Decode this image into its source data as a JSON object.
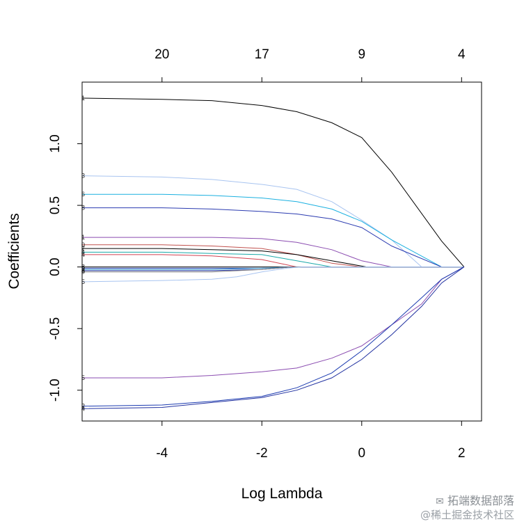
{
  "chart_data": {
    "type": "line",
    "xlabel": "Log Lambda",
    "ylabel": "Coefficients",
    "xlim": [
      -5.6,
      2.4
    ],
    "ylim": [
      -1.25,
      1.5
    ],
    "x_ticks": [
      -4,
      -2,
      0,
      2
    ],
    "x_tick_labels": [
      "-4",
      "-2",
      "0",
      "2"
    ],
    "y_ticks": [
      -1.0,
      -0.5,
      0.0,
      0.5,
      1.0
    ],
    "y_tick_labels": [
      "-1.0",
      "-0.5",
      "0.0",
      "0.5",
      "1.0"
    ],
    "top_axis": {
      "positions": [
        -4,
        -2,
        0,
        2
      ],
      "labels": [
        "20",
        "17",
        "9",
        "4"
      ]
    },
    "grid": false,
    "series": [
      {
        "label": "1",
        "color": "#000000",
        "x": [
          -5.6,
          -4,
          -3,
          -2,
          -1.3,
          -0.6,
          0,
          0.6,
          1.6,
          2.05
        ],
        "values": [
          1.37,
          1.36,
          1.35,
          1.31,
          1.26,
          1.17,
          1.05,
          0.77,
          0.21,
          0
        ]
      },
      {
        "label": "3",
        "color": "#a8c4f0",
        "x": [
          -5.6,
          -4,
          -3,
          -2,
          -1.3,
          -0.6,
          0,
          0.6,
          1.2,
          2.05
        ],
        "values": [
          0.74,
          0.73,
          0.71,
          0.67,
          0.63,
          0.53,
          0.38,
          0.22,
          0.0,
          0
        ]
      },
      {
        "label": "6",
        "color": "#1ab0e0",
        "x": [
          -5.6,
          -4,
          -3,
          -2,
          -1.3,
          -0.6,
          0,
          0.6,
          1.6,
          2.05
        ],
        "values": [
          0.59,
          0.59,
          0.58,
          0.56,
          0.53,
          0.47,
          0.37,
          0.22,
          0.0,
          0
        ]
      },
      {
        "label": "8",
        "color": "#2a3ab0",
        "x": [
          -5.6,
          -4,
          -3,
          -2,
          -1.3,
          -0.6,
          0,
          0.6,
          1.6,
          2.05
        ],
        "values": [
          0.48,
          0.48,
          0.47,
          0.45,
          0.43,
          0.39,
          0.32,
          0.17,
          0.0,
          0
        ]
      },
      {
        "label": "1",
        "color": "#8a4bb0",
        "x": [
          -5.6,
          -4,
          -3,
          -2,
          -1.3,
          -0.6,
          0,
          0.6,
          2.05
        ],
        "values": [
          0.24,
          0.24,
          0.24,
          0.23,
          0.2,
          0.14,
          0.05,
          0.0,
          0
        ]
      },
      {
        "label": "0",
        "color": "#c0504d",
        "x": [
          -5.6,
          -4,
          -3,
          -2,
          -1.3,
          -0.6,
          0,
          2.05
        ],
        "values": [
          0.18,
          0.18,
          0.17,
          0.15,
          0.1,
          0.03,
          0.0,
          0
        ]
      },
      {
        "label": "7",
        "color": "#000000",
        "x": [
          -5.6,
          -4,
          -3,
          -2,
          -1.3,
          -0.6,
          0.1,
          2.05
        ],
        "values": [
          0.15,
          0.15,
          0.14,
          0.13,
          0.1,
          0.05,
          0.0,
          0
        ]
      },
      {
        "label": "4",
        "color": "#18a8a8",
        "x": [
          -5.6,
          -4,
          -3,
          -2,
          -1.3,
          -0.6,
          2.05
        ],
        "values": [
          0.12,
          0.12,
          0.11,
          0.1,
          0.05,
          0.0,
          0
        ]
      },
      {
        "label": "4",
        "color": "#d04050",
        "x": [
          -5.6,
          -4,
          -3,
          -2,
          -1.3,
          2.05
        ],
        "values": [
          0.1,
          0.1,
          0.09,
          0.06,
          0.0,
          0
        ]
      },
      {
        "label": "8",
        "color": "#000000",
        "x": [
          -5.6,
          -4,
          -2,
          2.05
        ],
        "values": [
          0.0,
          0.0,
          0.0,
          0
        ]
      },
      {
        "label": "9",
        "color": "#1a3ab0",
        "x": [
          -5.6,
          -4,
          -3,
          -2,
          -1.4,
          2.05
        ],
        "values": [
          -0.01,
          -0.01,
          -0.01,
          -0.01,
          0.0,
          0
        ]
      },
      {
        "label": "2",
        "color": "#40a0d0",
        "x": [
          -5.6,
          -4,
          -3,
          -2,
          -1.4,
          2.05
        ],
        "values": [
          -0.02,
          -0.02,
          -0.02,
          -0.01,
          0.0,
          0
        ]
      },
      {
        "label": "3",
        "color": "#2030a0",
        "x": [
          -5.6,
          -4,
          -3,
          -2,
          -1.4,
          2.05
        ],
        "values": [
          -0.03,
          -0.03,
          -0.03,
          -0.02,
          0.0,
          0
        ]
      },
      {
        "label": "0",
        "color": "#808080",
        "x": [
          -5.6,
          -4,
          -3,
          -2,
          -1.4,
          2.05
        ],
        "values": [
          -0.04,
          -0.04,
          -0.04,
          -0.02,
          0.0,
          0
        ]
      },
      {
        "label": "5",
        "color": "#a8c4f0",
        "x": [
          -5.6,
          -4,
          -3,
          -2.5,
          -2,
          -1.5,
          -1.2,
          2.05
        ],
        "values": [
          -0.12,
          -0.11,
          -0.1,
          -0.08,
          -0.04,
          -0.01,
          0.0,
          0
        ]
      },
      {
        "label": "5",
        "color": "#8a4bb0",
        "x": [
          -5.6,
          -4,
          -3,
          -2,
          -1.3,
          -0.6,
          0,
          0.6,
          1.2,
          1.6,
          2.05
        ],
        "values": [
          -0.9,
          -0.9,
          -0.88,
          -0.85,
          -0.82,
          -0.74,
          -0.64,
          -0.47,
          -0.3,
          -0.1,
          0
        ]
      },
      {
        "label": "2",
        "color": "#1a3ab0",
        "x": [
          -5.6,
          -4,
          -3,
          -2,
          -1.3,
          -0.6,
          0,
          0.6,
          1.2,
          1.6,
          2.05
        ],
        "values": [
          -1.13,
          -1.12,
          -1.09,
          -1.05,
          -0.98,
          -0.86,
          -0.68,
          -0.47,
          -0.25,
          -0.1,
          0
        ]
      },
      {
        "label": "4",
        "color": "#2030a0",
        "x": [
          -5.6,
          -4,
          -3,
          -2,
          -1.3,
          -0.6,
          0,
          0.6,
          1.2,
          1.6,
          2.05
        ],
        "values": [
          -1.15,
          -1.14,
          -1.1,
          -1.06,
          -1.0,
          -0.9,
          -0.75,
          -0.55,
          -0.32,
          -0.13,
          0
        ]
      }
    ]
  },
  "watermark": {
    "line1": "拓端数据部落",
    "line2": "@稀土掘金技术社区"
  }
}
